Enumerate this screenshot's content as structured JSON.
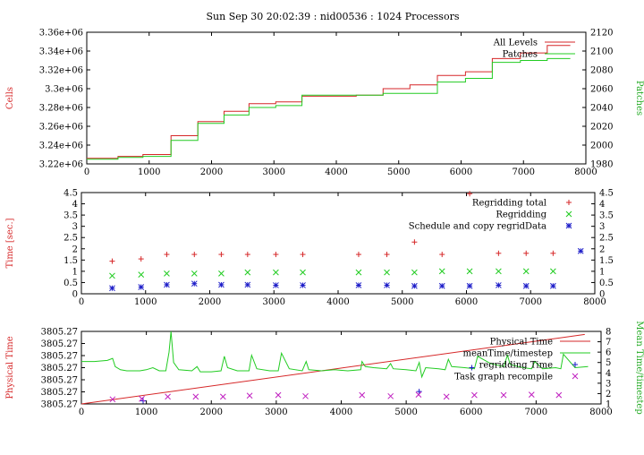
{
  "title": "Sun Sep 30 20:02:39 : nid00536 : 1024 Processors",
  "colors": {
    "red": "#d62728",
    "green": "#22cc22",
    "blue": "#1c1cc8",
    "magenta": "#c020c0",
    "frame": "#000000"
  },
  "chart_data": [
    {
      "type": "line",
      "ylabel": "Cells",
      "y2label": "Patches",
      "xlim": [
        0,
        8000
      ],
      "ylim": [
        3220000,
        3360000
      ],
      "y2lim": [
        1980,
        2120
      ],
      "xticks": [
        "0",
        "1000",
        "2000",
        "3000",
        "4000",
        "5000",
        "6000",
        "7000",
        "8000"
      ],
      "yticks": [
        "3.22e+06",
        "3.24e+06",
        "3.26e+06",
        "3.28e+06",
        "3.3e+06",
        "3.32e+06",
        "3.34e+06",
        "3.36e+06"
      ],
      "y2ticks": [
        "1980",
        "2000",
        "2020",
        "2040",
        "2060",
        "2080",
        "2100",
        "2120"
      ],
      "legend_position": "top-right",
      "series": [
        {
          "name": "All Levels",
          "axis": "y",
          "color_key": "red",
          "x": [
            0,
            500,
            500,
            900,
            900,
            1350,
            1350,
            1780,
            1780,
            2200,
            2200,
            2600,
            2600,
            3030,
            3030,
            3450,
            3450,
            4320,
            4320,
            4750,
            4750,
            5180,
            5180,
            5620,
            5620,
            6070,
            6070,
            6500,
            6500,
            6950,
            6950,
            7380,
            7380,
            7750
          ],
          "y": [
            3226000,
            3226000,
            3228000,
            3228000,
            3230000,
            3230000,
            3250000,
            3250000,
            3265000,
            3265000,
            3276000,
            3276000,
            3284000,
            3284000,
            3286000,
            3286000,
            3292000,
            3292000,
            3293000,
            3293000,
            3300000,
            3300000,
            3304000,
            3304000,
            3314000,
            3314000,
            3318000,
            3318000,
            3332000,
            3332000,
            3338000,
            3338000,
            3346000,
            3346000
          ]
        },
        {
          "name": "Patches",
          "axis": "y2",
          "color_key": "green",
          "x": [
            0,
            500,
            500,
            900,
            900,
            1350,
            1350,
            1780,
            1780,
            2200,
            2200,
            2600,
            2600,
            3030,
            3030,
            3450,
            3450,
            4320,
            4320,
            4750,
            4750,
            5180,
            5180,
            5620,
            5620,
            6070,
            6070,
            6500,
            6500,
            6950,
            6950,
            7380,
            7380,
            7750
          ],
          "y": [
            1985,
            1985,
            1987,
            1987,
            1988,
            1988,
            2005,
            2005,
            2023,
            2023,
            2032,
            2032,
            2040,
            2040,
            2042,
            2042,
            2053,
            2053,
            2053,
            2053,
            2055,
            2055,
            2055,
            2055,
            2067,
            2067,
            2071,
            2071,
            2088,
            2088,
            2090,
            2090,
            2092,
            2092
          ]
        }
      ]
    },
    {
      "type": "scatter",
      "ylabel": "Time [sec.]",
      "xlim": [
        0,
        8000
      ],
      "ylim": [
        0,
        4.5
      ],
      "xticks": [
        "0",
        "1000",
        "2000",
        "3000",
        "4000",
        "5000",
        "6000",
        "7000",
        "8000"
      ],
      "yticks": [
        "0",
        "0.5",
        "1",
        "1.5",
        "2",
        "2.5",
        "3",
        "3.5",
        "4",
        "4.5"
      ],
      "legend_position": "top-right",
      "series": [
        {
          "name": "Regridding total",
          "color_key": "red",
          "marker": "plus",
          "x": [
            480,
            930,
            1330,
            1760,
            2180,
            2590,
            3030,
            3450,
            4320,
            4760,
            5190,
            5620,
            6050,
            6500,
            6930,
            7350
          ],
          "y": [
            1.45,
            1.55,
            1.75,
            1.75,
            1.75,
            1.75,
            1.75,
            1.75,
            1.75,
            1.75,
            2.3,
            1.75,
            4.45,
            1.8,
            1.8,
            1.8
          ]
        },
        {
          "name": "Regridding",
          "color_key": "green",
          "marker": "cross",
          "x": [
            480,
            930,
            1330,
            1760,
            2180,
            2590,
            3030,
            3450,
            4320,
            4760,
            5190,
            5620,
            6050,
            6500,
            6930,
            7350
          ],
          "y": [
            0.8,
            0.85,
            0.9,
            0.9,
            0.9,
            0.95,
            0.95,
            0.95,
            0.95,
            0.95,
            0.95,
            1.0,
            1.0,
            1.0,
            1.0,
            1.0
          ]
        },
        {
          "name": "Schedule and copy regridData",
          "color_key": "blue",
          "marker": "star",
          "x": [
            480,
            930,
            1330,
            1760,
            2180,
            2590,
            3030,
            3450,
            4320,
            4760,
            5190,
            5620,
            6050,
            6500,
            6930,
            7350,
            7780
          ],
          "y": [
            0.25,
            0.3,
            0.4,
            0.45,
            0.4,
            0.4,
            0.38,
            0.38,
            0.38,
            0.38,
            0.35,
            0.35,
            0.35,
            0.38,
            0.35,
            0.35,
            1.9
          ]
        }
      ]
    },
    {
      "type": "line",
      "ylabel": "Physical Time",
      "y2label": "Mean Time/timestep",
      "xlim": [
        0,
        8000
      ],
      "ylim": [
        0,
        6
      ],
      "y2lim": [
        1,
        8
      ],
      "xticks": [
        "0",
        "1000",
        "2000",
        "3000",
        "4000",
        "5000",
        "6000",
        "7000",
        "8000"
      ],
      "yticks": [
        "3805.27",
        "3805.27",
        "3805.27",
        "3805.27",
        "3805.27",
        "3805.27",
        "3805.27"
      ],
      "y2ticks": [
        "1",
        "2",
        "3",
        "4",
        "5",
        "6",
        "7",
        "8"
      ],
      "legend_position": "top-right",
      "series": [
        {
          "name": "Physical Time",
          "axis": "y",
          "color_key": "red",
          "marker": "none",
          "x": [
            0,
            7750
          ],
          "y": [
            0,
            5.75
          ]
        },
        {
          "name": "meanTime/timestep",
          "axis": "y2",
          "color_key": "green",
          "marker": "none",
          "x": [
            0,
            200,
            400,
            480,
            520,
            600,
            700,
            900,
            1000,
            1100,
            1200,
            1300,
            1350,
            1380,
            1420,
            1500,
            1700,
            1780,
            1830,
            2000,
            2150,
            2200,
            2250,
            2400,
            2580,
            2620,
            2700,
            2900,
            3030,
            3080,
            3200,
            3400,
            3460,
            3500,
            3700,
            3900,
            4100,
            4300,
            4320,
            4370,
            4500,
            4700,
            4760,
            4800,
            5000,
            5150,
            5200,
            5240,
            5300,
            5500,
            5600,
            5650,
            5700,
            5900,
            6050,
            6100,
            6300,
            6500,
            6560,
            6600,
            6800,
            6930,
            6980,
            7100,
            7300,
            7380,
            7420,
            7600,
            7800
          ],
          "y": [
            5.1,
            5.1,
            5.2,
            5.4,
            4.6,
            4.3,
            4.2,
            4.2,
            4.3,
            4.5,
            4.2,
            4.2,
            6.0,
            8.0,
            5.0,
            4.3,
            4.2,
            4.6,
            4.1,
            4.1,
            4.2,
            5.6,
            4.5,
            4.2,
            4.2,
            5.7,
            4.4,
            4.2,
            4.2,
            5.9,
            4.4,
            4.2,
            5.1,
            4.3,
            4.2,
            4.3,
            4.2,
            4.3,
            5.1,
            4.6,
            4.5,
            4.4,
            4.9,
            4.4,
            4.3,
            4.2,
            5.0,
            3.6,
            4.5,
            4.4,
            4.3,
            5.3,
            4.6,
            4.5,
            4.4,
            5.6,
            4.9,
            4.6,
            5.7,
            4.8,
            4.5,
            4.4,
            5.1,
            4.4,
            4.5,
            4.4,
            5.8,
            4.5,
            4.6
          ]
        },
        {
          "name": "regridding Time",
          "axis": "y2",
          "color_key": "blue",
          "marker": "plus",
          "x": [
            950,
            5200,
            6010
          ],
          "y": [
            1.3,
            2.2,
            4.5
          ]
        },
        {
          "name": "Task graph recompile",
          "axis": "y2",
          "color_key": "magenta",
          "marker": "cross",
          "x": [
            480,
            930,
            1330,
            1760,
            2180,
            2590,
            3030,
            3450,
            4320,
            4760,
            5190,
            5620,
            6050,
            6500,
            6930,
            7350
          ],
          "y": [
            1.45,
            1.5,
            1.7,
            1.7,
            1.7,
            1.8,
            1.85,
            1.75,
            1.85,
            1.75,
            1.9,
            1.7,
            1.85,
            1.85,
            1.9,
            1.85
          ]
        }
      ]
    }
  ]
}
